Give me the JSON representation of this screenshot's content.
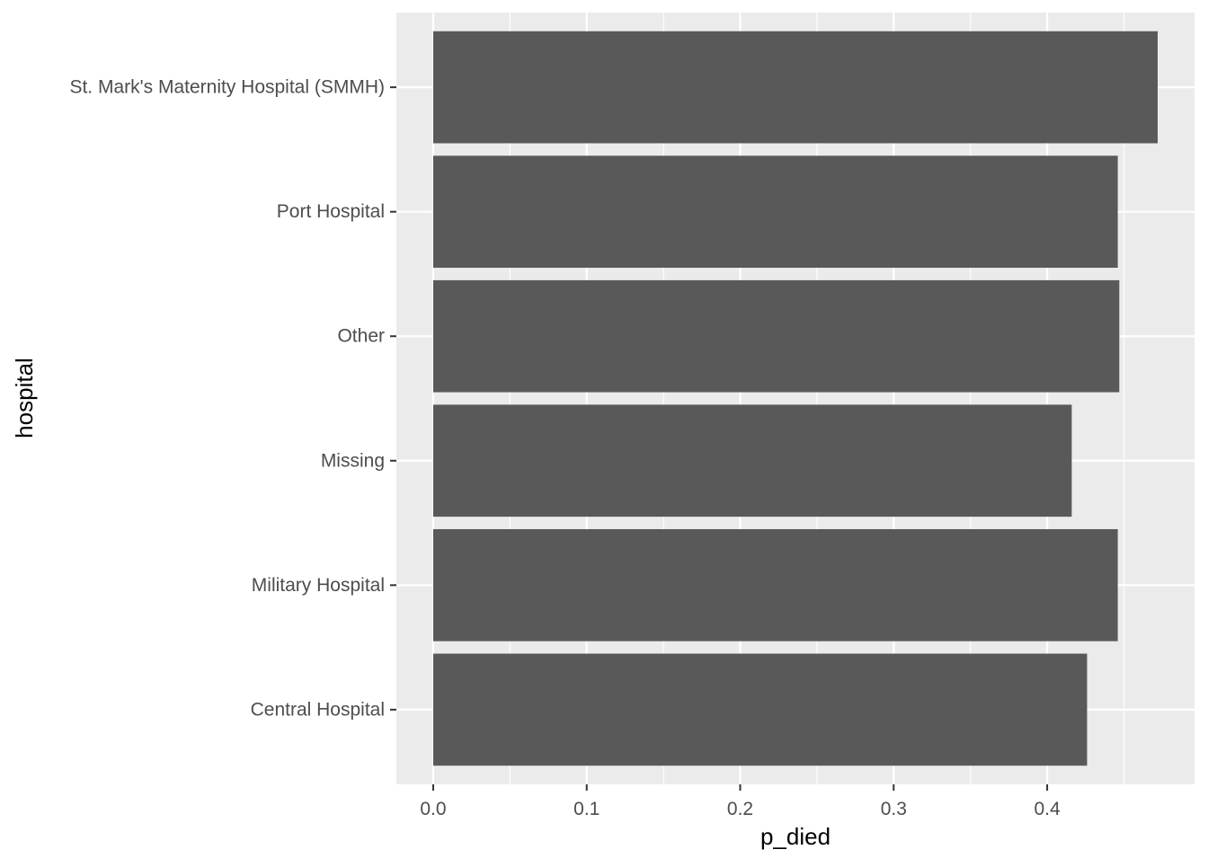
{
  "chart_data": {
    "type": "bar",
    "orientation": "horizontal",
    "categories": [
      "St. Mark's Maternity Hospital (SMMH)",
      "Port Hospital",
      "Other",
      "Missing",
      "Military Hospital",
      "Central Hospital"
    ],
    "values": [
      0.472,
      0.446,
      0.447,
      0.416,
      0.446,
      0.426
    ],
    "xlabel": "p_died",
    "ylabel": "hospital",
    "xlim": [
      -0.024,
      0.496
    ],
    "x_ticks": [
      "0.0",
      "0.1",
      "0.2",
      "0.3",
      "0.4"
    ],
    "grid": true,
    "legend": "none",
    "colors": {
      "bar": "#595959",
      "panel": "#ebebeb",
      "grid": "#ffffff",
      "tick_text": "#4d4d4d",
      "axis_title": "#000000"
    }
  }
}
